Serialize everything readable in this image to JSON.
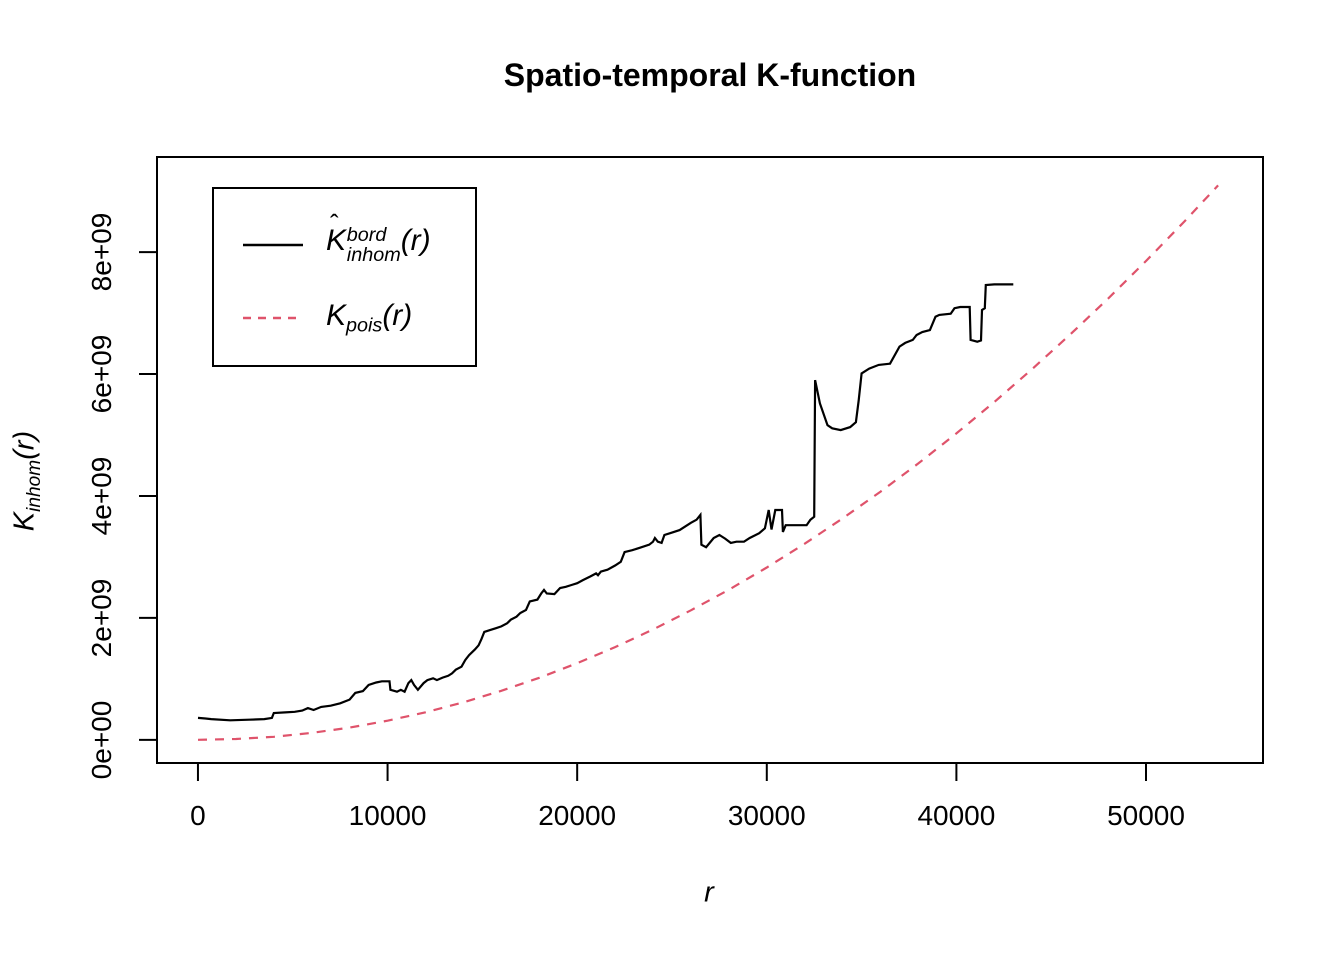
{
  "chart_data": {
    "type": "line",
    "title": "Spatio-temporal K-function",
    "xlabel": "r",
    "ylabel": "K_inhom(r)",
    "grid": false,
    "legend_position": "top-left",
    "xlim": [
      -2160,
      56170
    ],
    "ylim_e9": [
      -0.38,
      9.56
    ],
    "x_ticks": {
      "values": [
        0,
        10000,
        20000,
        30000,
        40000,
        50000
      ],
      "labels": [
        "0",
        "10000",
        "20000",
        "30000",
        "40000",
        "50000"
      ]
    },
    "y_ticks": {
      "values_e9": [
        0,
        2,
        4,
        6,
        8
      ],
      "labels": [
        "0e+00",
        "2e+09",
        "4e+09",
        "6e+09",
        "8e+09"
      ]
    },
    "x_axis_label_parts": {
      "base": "r"
    },
    "y_axis_label_parts": {
      "base": "K",
      "sub": "inhom",
      "arg": "(r)"
    },
    "series": [
      {
        "name": "K-inhom-border-estimate",
        "legend": {
          "hat": "ˆ",
          "base": "K",
          "sup": "bord",
          "sub": "inhom",
          "arg": "(r)"
        },
        "color": "#000000",
        "line": "solid",
        "y_unit": "1e9",
        "points": [
          [
            0,
            0.36
          ],
          [
            400,
            0.35
          ],
          [
            700,
            0.34
          ],
          [
            1700,
            0.32
          ],
          [
            2700,
            0.33
          ],
          [
            3500,
            0.34
          ],
          [
            3900,
            0.36
          ],
          [
            4000,
            0.44
          ],
          [
            4600,
            0.45
          ],
          [
            5100,
            0.46
          ],
          [
            5500,
            0.48
          ],
          [
            5800,
            0.52
          ],
          [
            6100,
            0.49
          ],
          [
            6500,
            0.54
          ],
          [
            7000,
            0.56
          ],
          [
            7500,
            0.6
          ],
          [
            8000,
            0.66
          ],
          [
            8300,
            0.77
          ],
          [
            8700,
            0.8
          ],
          [
            9000,
            0.9
          ],
          [
            9400,
            0.94
          ],
          [
            9700,
            0.96
          ],
          [
            10100,
            0.96
          ],
          [
            10150,
            0.82
          ],
          [
            10500,
            0.79
          ],
          [
            10700,
            0.82
          ],
          [
            10900,
            0.79
          ],
          [
            11100,
            0.93
          ],
          [
            11250,
            0.98
          ],
          [
            11400,
            0.9
          ],
          [
            11600,
            0.82
          ],
          [
            11900,
            0.93
          ],
          [
            12100,
            0.98
          ],
          [
            12400,
            1.01
          ],
          [
            12600,
            0.98
          ],
          [
            12900,
            1.02
          ],
          [
            13200,
            1.05
          ],
          [
            13400,
            1.09
          ],
          [
            13600,
            1.15
          ],
          [
            13900,
            1.2
          ],
          [
            14100,
            1.31
          ],
          [
            14300,
            1.39
          ],
          [
            14600,
            1.48
          ],
          [
            14800,
            1.55
          ],
          [
            14950,
            1.65
          ],
          [
            15100,
            1.77
          ],
          [
            15400,
            1.8
          ],
          [
            15700,
            1.83
          ],
          [
            16000,
            1.86
          ],
          [
            16300,
            1.91
          ],
          [
            16500,
            1.97
          ],
          [
            16800,
            2.02
          ],
          [
            17000,
            2.08
          ],
          [
            17300,
            2.13
          ],
          [
            17500,
            2.27
          ],
          [
            17900,
            2.3
          ],
          [
            18100,
            2.4
          ],
          [
            18250,
            2.46
          ],
          [
            18400,
            2.4
          ],
          [
            18800,
            2.39
          ],
          [
            19100,
            2.49
          ],
          [
            19400,
            2.51
          ],
          [
            19700,
            2.54
          ],
          [
            20000,
            2.57
          ],
          [
            20300,
            2.62
          ],
          [
            20700,
            2.68
          ],
          [
            21000,
            2.73
          ],
          [
            21100,
            2.7
          ],
          [
            21250,
            2.76
          ],
          [
            21600,
            2.79
          ],
          [
            22000,
            2.86
          ],
          [
            22300,
            2.92
          ],
          [
            22500,
            3.08
          ],
          [
            22900,
            3.11
          ],
          [
            23300,
            3.15
          ],
          [
            23800,
            3.2
          ],
          [
            24000,
            3.25
          ],
          [
            24100,
            3.31
          ],
          [
            24250,
            3.25
          ],
          [
            24450,
            3.23
          ],
          [
            24600,
            3.36
          ],
          [
            24900,
            3.39
          ],
          [
            25400,
            3.44
          ],
          [
            26000,
            3.56
          ],
          [
            26300,
            3.61
          ],
          [
            26500,
            3.69
          ],
          [
            26550,
            3.2
          ],
          [
            26800,
            3.16
          ],
          [
            27200,
            3.31
          ],
          [
            27500,
            3.36
          ],
          [
            27800,
            3.3
          ],
          [
            28100,
            3.23
          ],
          [
            28400,
            3.25
          ],
          [
            28800,
            3.25
          ],
          [
            29100,
            3.31
          ],
          [
            29600,
            3.39
          ],
          [
            29900,
            3.47
          ],
          [
            30100,
            3.77
          ],
          [
            30250,
            3.45
          ],
          [
            30450,
            3.77
          ],
          [
            30800,
            3.77
          ],
          [
            30850,
            3.41
          ],
          [
            31000,
            3.52
          ],
          [
            32100,
            3.52
          ],
          [
            32300,
            3.61
          ],
          [
            32500,
            3.66
          ],
          [
            32550,
            5.9
          ],
          [
            32800,
            5.52
          ],
          [
            33200,
            5.16
          ],
          [
            33450,
            5.11
          ],
          [
            33900,
            5.08
          ],
          [
            34400,
            5.13
          ],
          [
            34700,
            5.21
          ],
          [
            34850,
            5.57
          ],
          [
            35000,
            6.01
          ],
          [
            35400,
            6.09
          ],
          [
            35900,
            6.15
          ],
          [
            36500,
            6.17
          ],
          [
            37000,
            6.45
          ],
          [
            37300,
            6.51
          ],
          [
            37700,
            6.56
          ],
          [
            37900,
            6.64
          ],
          [
            38200,
            6.69
          ],
          [
            38600,
            6.72
          ],
          [
            38900,
            6.94
          ],
          [
            39100,
            6.97
          ],
          [
            39700,
            6.99
          ],
          [
            39900,
            7.08
          ],
          [
            40200,
            7.1
          ],
          [
            40700,
            7.1
          ],
          [
            40750,
            6.56
          ],
          [
            41100,
            6.53
          ],
          [
            41300,
            6.55
          ],
          [
            41350,
            7.05
          ],
          [
            41500,
            7.08
          ],
          [
            41550,
            7.46
          ],
          [
            42000,
            7.47
          ],
          [
            43000,
            7.47
          ]
        ]
      },
      {
        "name": "K-poisson-theoretical",
        "legend": {
          "base": "K",
          "sub": "pois",
          "arg": "(r)"
        },
        "color": "#DF536B",
        "line": "dashed",
        "formula": "pi * r^2",
        "y_unit": "1e9",
        "points": [
          [
            0,
            0
          ],
          [
            2000,
            0.013
          ],
          [
            4000,
            0.05
          ],
          [
            6000,
            0.113
          ],
          [
            8000,
            0.201
          ],
          [
            10000,
            0.314
          ],
          [
            12000,
            0.452
          ],
          [
            14000,
            0.616
          ],
          [
            16000,
            0.804
          ],
          [
            18000,
            1.018
          ],
          [
            20000,
            1.257
          ],
          [
            22000,
            1.521
          ],
          [
            24000,
            1.81
          ],
          [
            26000,
            2.124
          ],
          [
            28000,
            2.463
          ],
          [
            30000,
            2.827
          ],
          [
            32000,
            3.217
          ],
          [
            34000,
            3.632
          ],
          [
            36000,
            4.072
          ],
          [
            38000,
            4.536
          ],
          [
            40000,
            5.027
          ],
          [
            42000,
            5.542
          ],
          [
            44000,
            6.082
          ],
          [
            46000,
            6.648
          ],
          [
            48000,
            7.238
          ],
          [
            50000,
            7.854
          ],
          [
            52000,
            8.494
          ],
          [
            53800,
            9.094
          ]
        ]
      }
    ],
    "colors": {
      "background": "#FFFFFF",
      "axis": "#000000",
      "estimate_line": "#000000",
      "poisson_line": "#DF536B"
    }
  }
}
